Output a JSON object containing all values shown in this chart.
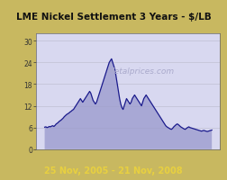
{
  "title": "LME Nickel Settlement 3 Years - $/LB",
  "subtitle": "25 Nov, 2005 - 21 Nov, 2008",
  "watermark": "Metalprices.com",
  "yticks": [
    0,
    6,
    12,
    18,
    24,
    30
  ],
  "ylim": [
    0,
    32
  ],
  "line_color": "#1a1a8c",
  "fill_color": "#9999cc",
  "bg_outer": "#c8b860",
  "bg_inner": "#d8d8f0",
  "subtitle_color": "#e8d040",
  "watermark_color": "#aaaacc",
  "y": [
    6.1,
    6.2,
    6.0,
    6.1,
    6.3,
    6.2,
    6.4,
    6.5,
    6.3,
    6.6,
    7.0,
    7.2,
    7.5,
    7.8,
    8.0,
    8.3,
    8.6,
    9.0,
    9.3,
    9.6,
    9.8,
    10.0,
    10.3,
    10.5,
    10.8,
    11.0,
    11.5,
    12.0,
    12.5,
    13.0,
    13.5,
    14.0,
    13.5,
    13.0,
    13.5,
    14.0,
    14.5,
    15.0,
    15.5,
    16.0,
    15.5,
    14.5,
    13.5,
    13.0,
    12.5,
    13.0,
    14.0,
    15.0,
    16.0,
    17.0,
    18.0,
    19.0,
    20.0,
    21.0,
    22.0,
    23.0,
    24.0,
    24.5,
    25.0,
    24.0,
    23.0,
    22.0,
    20.0,
    18.0,
    16.0,
    14.0,
    12.5,
    11.5,
    11.0,
    12.0,
    13.0,
    14.0,
    13.5,
    13.0,
    12.5,
    13.0,
    14.0,
    14.5,
    15.0,
    14.5,
    14.0,
    13.5,
    13.0,
    12.5,
    12.0,
    13.0,
    14.0,
    14.5,
    15.0,
    14.5,
    14.0,
    13.5,
    13.0,
    12.5,
    12.0,
    11.5,
    11.0,
    10.5,
    10.0,
    9.5,
    9.0,
    8.5,
    8.0,
    7.5,
    7.0,
    6.5,
    6.2,
    6.0,
    5.8,
    5.6,
    5.5,
    5.8,
    6.2,
    6.5,
    6.8,
    7.0,
    6.8,
    6.5,
    6.2,
    6.0,
    5.8,
    5.6,
    5.5,
    5.8,
    6.0,
    6.2,
    6.0,
    5.9,
    5.8,
    5.7,
    5.6,
    5.5,
    5.4,
    5.3,
    5.2,
    5.1,
    5.0,
    5.1,
    5.2,
    5.1,
    5.0,
    4.9,
    5.0,
    5.1,
    5.2,
    5.3
  ]
}
